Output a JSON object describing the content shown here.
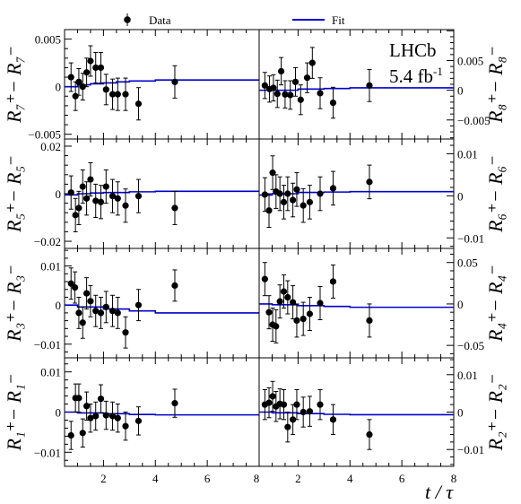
{
  "legend": {
    "data_label": "Data",
    "fit_label": "Fit",
    "fit_color": "#0000cc"
  },
  "experiment": {
    "name": "LHCb",
    "lumi_value": "5.4 fb",
    "lumi_exp": "-1"
  },
  "xaxis": {
    "label": "t / τ",
    "ticks": [
      "2",
      "4",
      "6",
      "8"
    ]
  },
  "chart_data": [
    {
      "type": "scatter",
      "name": "R7",
      "ylabel": "R₇⁺− R₇⁻",
      "xlim": [
        0.5,
        8
      ],
      "ylim": [
        -0.0055,
        0.006
      ],
      "yticks": [
        -0.005,
        0,
        0.005
      ],
      "ytick_labels": [
        "−0.005",
        "0",
        "0.005"
      ],
      "x": [
        0.75,
        0.92,
        1.05,
        1.2,
        1.35,
        1.5,
        1.7,
        1.9,
        2.1,
        2.35,
        2.55,
        2.85,
        3.35,
        4.75
      ],
      "y": [
        0.001,
        -0.001,
        0.0005,
        0.0,
        0.0015,
        0.0027,
        0.002,
        0.002,
        -0.0003,
        -0.0008,
        -0.0008,
        -0.0008,
        -0.0018,
        0.0005
      ],
      "yerr": [
        0.0015,
        0.0015,
        0.0014,
        0.0014,
        0.0015,
        0.0016,
        0.0016,
        0.0016,
        0.0016,
        0.0016,
        0.0017,
        0.0017,
        0.0017,
        0.0017
      ],
      "fit": [
        [
          0.5,
          0.0
        ],
        [
          0.8,
          0.0
        ],
        [
          1.0,
          0.0002
        ],
        [
          1.5,
          0.0003
        ],
        [
          2.0,
          0.0004
        ],
        [
          2.5,
          0.0005
        ],
        [
          3.0,
          0.0006
        ],
        [
          4.0,
          0.0007
        ],
        [
          8.0,
          0.0007
        ]
      ]
    },
    {
      "type": "scatter",
      "name": "R8",
      "ylabel": "R₈⁺− R₈⁻",
      "xlim": [
        0.5,
        8
      ],
      "ylim": [
        -0.0082,
        0.0102
      ],
      "yticks": [
        -0.005,
        0,
        0.005
      ],
      "ytick_labels": [
        "−0.005",
        "0",
        "0.005"
      ],
      "x": [
        0.72,
        0.9,
        1.05,
        1.2,
        1.35,
        1.5,
        1.7,
        1.9,
        2.1,
        2.35,
        2.55,
        2.85,
        3.35,
        4.75
      ],
      "y": [
        0.0008,
        0.0002,
        0.0004,
        -0.0006,
        0.0032,
        -0.0007,
        -0.0008,
        0.0014,
        -0.0016,
        0.0021,
        0.0046,
        -0.0005,
        -0.0021,
        0.0008
      ],
      "yerr": [
        0.0022,
        0.0022,
        0.0022,
        0.0023,
        0.0023,
        0.0023,
        0.0024,
        0.0024,
        0.0025,
        0.0025,
        0.0026,
        0.0026,
        0.0026,
        0.0027
      ],
      "fit": [
        [
          0.5,
          0.0
        ],
        [
          1.0,
          0.0
        ],
        [
          2.0,
          0.0002
        ],
        [
          3.0,
          0.0003
        ],
        [
          4.0,
          0.0004
        ],
        [
          8.0,
          0.0004
        ]
      ]
    },
    {
      "type": "scatter",
      "name": "R5",
      "ylabel": "R₅⁺− R₅⁻",
      "xlim": [
        0.5,
        8
      ],
      "ylim": [
        -0.023,
        0.023
      ],
      "yticks": [
        -0.02,
        0,
        0.02
      ],
      "ytick_labels": [
        "−0.02",
        "0",
        "0.02"
      ],
      "x": [
        0.75,
        0.92,
        1.05,
        1.2,
        1.35,
        1.5,
        1.7,
        1.9,
        2.1,
        2.35,
        2.55,
        2.85,
        3.35,
        4.75
      ],
      "y": [
        0.0005,
        -0.009,
        -0.006,
        0.003,
        -0.002,
        0.006,
        -0.003,
        -0.0035,
        0.003,
        -0.001,
        -0.002,
        -0.005,
        -0.001,
        -0.006
      ],
      "yerr": [
        0.007,
        0.007,
        0.007,
        0.007,
        0.007,
        0.007,
        0.007,
        0.007,
        0.007,
        0.007,
        0.007,
        0.007,
        0.007,
        0.007
      ],
      "fit": [
        [
          0.5,
          -0.0005
        ],
        [
          1.0,
          0.0
        ],
        [
          1.5,
          0.0003
        ],
        [
          2.0,
          0.0005
        ],
        [
          3.0,
          0.0008
        ],
        [
          4.0,
          0.001
        ],
        [
          8.0,
          0.001
        ]
      ]
    },
    {
      "type": "scatter",
      "name": "R6",
      "ylabel": "R₆⁺− R₆⁻",
      "xlim": [
        0.5,
        8
      ],
      "ylim": [
        -0.0125,
        0.0135
      ],
      "yticks": [
        -0.01,
        0,
        0.01
      ],
      "ytick_labels": [
        "−0.01",
        "0",
        "0.01"
      ],
      "x": [
        0.72,
        0.88,
        1.02,
        1.15,
        1.3,
        1.45,
        1.6,
        1.8,
        1.95,
        2.2,
        2.45,
        2.85,
        3.35,
        4.75
      ],
      "y": [
        0.0003,
        -0.0035,
        0.0055,
        0.001,
        0.0005,
        -0.0015,
        0.0005,
        -0.001,
        0.0015,
        -0.0023,
        -0.0015,
        0.0005,
        0.0018,
        0.0033
      ],
      "yerr": [
        0.004,
        0.004,
        0.004,
        0.004,
        0.004,
        0.004,
        0.004,
        0.004,
        0.004,
        0.004,
        0.004,
        0.004,
        0.004,
        0.004
      ],
      "fit": [
        [
          0.5,
          0.0002
        ],
        [
          1.0,
          0.0005
        ],
        [
          2.0,
          0.0008
        ],
        [
          3.0,
          0.0009
        ],
        [
          4.0,
          0.001
        ],
        [
          8.0,
          0.001
        ]
      ]
    },
    {
      "type": "scatter",
      "name": "R3",
      "ylabel": "R₃⁺− R₃⁻",
      "xlim": [
        0.5,
        8
      ],
      "ylim": [
        -0.0135,
        0.0145
      ],
      "yticks": [
        -0.01,
        0,
        0.01
      ],
      "ytick_labels": [
        "−0.01",
        "0",
        "0.01"
      ],
      "x": [
        0.75,
        0.9,
        1.05,
        1.2,
        1.35,
        1.5,
        1.7,
        1.9,
        2.1,
        2.35,
        2.55,
        2.85,
        3.35,
        4.75
      ],
      "y": [
        0.0055,
        0.0045,
        -0.002,
        -0.0045,
        0.003,
        0.001,
        -0.0015,
        -0.002,
        -0.0005,
        -0.0015,
        -0.002,
        -0.007,
        0.0,
        0.005
      ],
      "yerr": [
        0.004,
        0.004,
        0.004,
        0.004,
        0.004,
        0.004,
        0.004,
        0.004,
        0.004,
        0.004,
        0.004,
        0.004,
        0.004,
        0.004
      ],
      "fit": [
        [
          0.5,
          0.0
        ],
        [
          1.0,
          -0.0005
        ],
        [
          2.0,
          -0.001
        ],
        [
          3.0,
          -0.0015
        ],
        [
          4.0,
          -0.002
        ],
        [
          8.0,
          -0.002
        ]
      ]
    },
    {
      "type": "scatter",
      "name": "R4",
      "ylabel": "R₄⁺− R₄⁻",
      "xlim": [
        0.5,
        8
      ],
      "ylim": [
        -0.065,
        0.067
      ],
      "yticks": [
        -0.05,
        0,
        0.05
      ],
      "ytick_labels": [
        "−0.05",
        "0",
        "0.05"
      ],
      "x": [
        0.72,
        0.88,
        1.02,
        1.15,
        1.3,
        1.45,
        1.6,
        1.8,
        1.95,
        2.2,
        2.45,
        2.85,
        3.35,
        4.75
      ],
      "y": [
        0.03,
        -0.01,
        -0.025,
        -0.027,
        0.003,
        0.015,
        0.008,
        0.002,
        -0.02,
        -0.018,
        -0.012,
        0.001,
        0.027,
        -0.02
      ],
      "yerr": [
        0.02,
        0.02,
        0.02,
        0.02,
        0.02,
        0.02,
        0.02,
        0.02,
        0.02,
        0.02,
        0.02,
        0.02,
        0.02,
        0.02
      ],
      "fit": [
        [
          0.5,
          0.0
        ],
        [
          1.0,
          -0.001
        ],
        [
          2.0,
          -0.002
        ],
        [
          3.0,
          -0.003
        ],
        [
          4.0,
          -0.004
        ],
        [
          8.0,
          -0.004
        ]
      ]
    },
    {
      "type": "scatter",
      "name": "R1",
      "ylabel": "R₁⁺− R₁⁻",
      "xlim": [
        0.5,
        8
      ],
      "ylim": [
        -0.0135,
        0.0135
      ],
      "yticks": [
        -0.01,
        0,
        0.01
      ],
      "ytick_labels": [
        "−0.01",
        "0",
        "0.01"
      ],
      "x": [
        0.75,
        0.92,
        1.05,
        1.2,
        1.35,
        1.5,
        1.7,
        1.9,
        2.1,
        2.35,
        2.55,
        2.85,
        3.35,
        4.75
      ],
      "y": [
        -0.0058,
        0.0035,
        0.0035,
        -0.0052,
        0.0015,
        -0.0015,
        -0.001,
        0.0033,
        -0.0008,
        -0.001,
        -0.0015,
        -0.0035,
        -0.0022,
        0.0022
      ],
      "yerr": [
        0.0035,
        0.0035,
        0.0035,
        0.0035,
        0.0035,
        0.0035,
        0.0035,
        0.0035,
        0.0035,
        0.0035,
        0.0035,
        0.0035,
        0.0035,
        0.0035
      ],
      "fit": [
        [
          0.5,
          0.0
        ],
        [
          1.0,
          -0.0002
        ],
        [
          2.0,
          -0.0004
        ],
        [
          3.0,
          -0.0006
        ],
        [
          4.0,
          -0.0007
        ],
        [
          8.0,
          -0.0007
        ]
      ]
    },
    {
      "type": "scatter",
      "name": "R2",
      "ylabel": "R₂⁺− R₂⁻",
      "xlim": [
        0.5,
        8
      ],
      "ylim": [
        -0.0145,
        0.0145
      ],
      "yticks": [
        -0.01,
        0,
        0.01
      ],
      "ytick_labels": [
        "−0.01",
        "0",
        "0.01"
      ],
      "x": [
        0.72,
        0.88,
        1.02,
        1.15,
        1.3,
        1.45,
        1.6,
        1.8,
        1.95,
        2.2,
        2.45,
        2.85,
        3.35,
        4.75
      ],
      "y": [
        0.002,
        0.0025,
        0.0042,
        0.0015,
        0.0022,
        0.002,
        -0.004,
        -0.002,
        0.002,
        0.0,
        0.0002,
        0.002,
        -0.002,
        -0.006
      ],
      "yerr": [
        0.004,
        0.004,
        0.004,
        0.004,
        0.004,
        0.004,
        0.004,
        0.004,
        0.004,
        0.004,
        0.004,
        0.004,
        0.004,
        0.004
      ],
      "fit": [
        [
          0.5,
          0.0
        ],
        [
          1.0,
          -0.0002
        ],
        [
          2.0,
          -0.0004
        ],
        [
          3.0,
          -0.0006
        ],
        [
          4.0,
          -0.0007
        ],
        [
          8.0,
          -0.0007
        ]
      ]
    }
  ]
}
